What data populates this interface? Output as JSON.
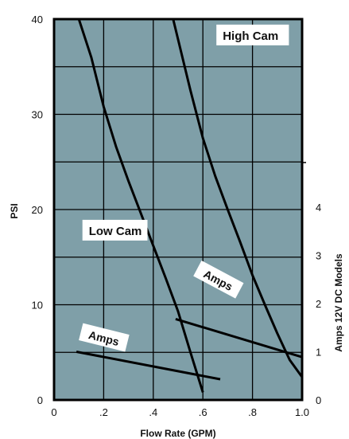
{
  "chart_data": {
    "type": "line",
    "title": "",
    "xlabel": "Flow Rate (GPM)",
    "ylabel": "PSI",
    "y2label": "Amps 12V DC Models",
    "xlim": [
      0,
      1.0
    ],
    "ylim": [
      0,
      40
    ],
    "y2lim": [
      0,
      4
    ],
    "x_ticks": [
      "0",
      ".2",
      ".4",
      ".6",
      ".8",
      "1.0"
    ],
    "y_ticks": [
      "0",
      "10",
      "20",
      "30",
      "40"
    ],
    "y2_ticks": [
      "0",
      "1",
      "2",
      "3",
      "4"
    ],
    "background_color": "#7f9fa8",
    "grid": true,
    "series": [
      {
        "name": "Low Cam",
        "axis": "left",
        "x": [
          0.1,
          0.15,
          0.2,
          0.25,
          0.3,
          0.35,
          0.4,
          0.45,
          0.5,
          0.55,
          0.6
        ],
        "y": [
          40.0,
          36.0,
          30.8,
          26.6,
          23.0,
          19.6,
          16.2,
          12.8,
          9.3,
          5.0,
          0.8
        ]
      },
      {
        "name": "High Cam",
        "axis": "left",
        "x": [
          0.48,
          0.55,
          0.6,
          0.65,
          0.7,
          0.75,
          0.8,
          0.85,
          0.9,
          0.95,
          1.0
        ],
        "y": [
          40.0,
          32.5,
          27.5,
          23.5,
          20.0,
          16.6,
          13.1,
          10.0,
          7.0,
          4.2,
          2.4
        ]
      },
      {
        "name": "Amps",
        "axis": "right",
        "x": [
          0.09,
          0.67
        ],
        "y": [
          1.0,
          0.43
        ]
      },
      {
        "name": "Amps",
        "axis": "right",
        "x": [
          0.49,
          1.0
        ],
        "y": [
          1.68,
          0.89
        ]
      }
    ],
    "annotations": [
      {
        "text": "High Cam",
        "x": 0.68,
        "y": 38.0
      },
      {
        "text": "Low Cam",
        "x": 0.14,
        "y": 17.5
      },
      {
        "text": "Amps",
        "x": 0.66,
        "y": 12.5
      },
      {
        "text": "Amps",
        "x": 0.2,
        "y": 6.4
      }
    ]
  }
}
